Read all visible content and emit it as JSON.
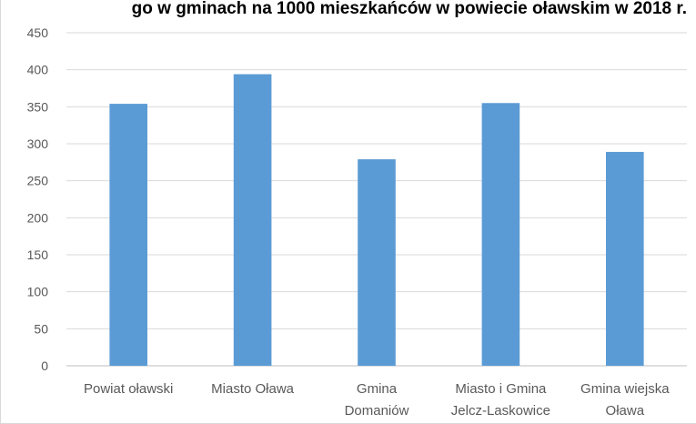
{
  "chart_data": {
    "type": "bar",
    "title": "go w gminach na 1000 mieszkańców w powiecie oławskim w 2018 r.",
    "categories": [
      [
        "Powiat oławski"
      ],
      [
        "Miasto Oława"
      ],
      [
        "Gmina",
        "Domaniów"
      ],
      [
        "Miasto i Gmina",
        "Jelcz-Laskowice"
      ],
      [
        "Gmina wiejska",
        "Oława"
      ]
    ],
    "values": [
      354,
      394,
      279,
      355,
      289
    ],
    "ylim": [
      0,
      450
    ],
    "yticks": [
      "0",
      "50",
      "100",
      "150",
      "200",
      "250",
      "300",
      "350",
      "400",
      "450"
    ],
    "grid": true,
    "colors": {
      "bar": "#5b9bd5",
      "grid": "#d9d9d9",
      "axis": "#bfbfbf"
    }
  }
}
